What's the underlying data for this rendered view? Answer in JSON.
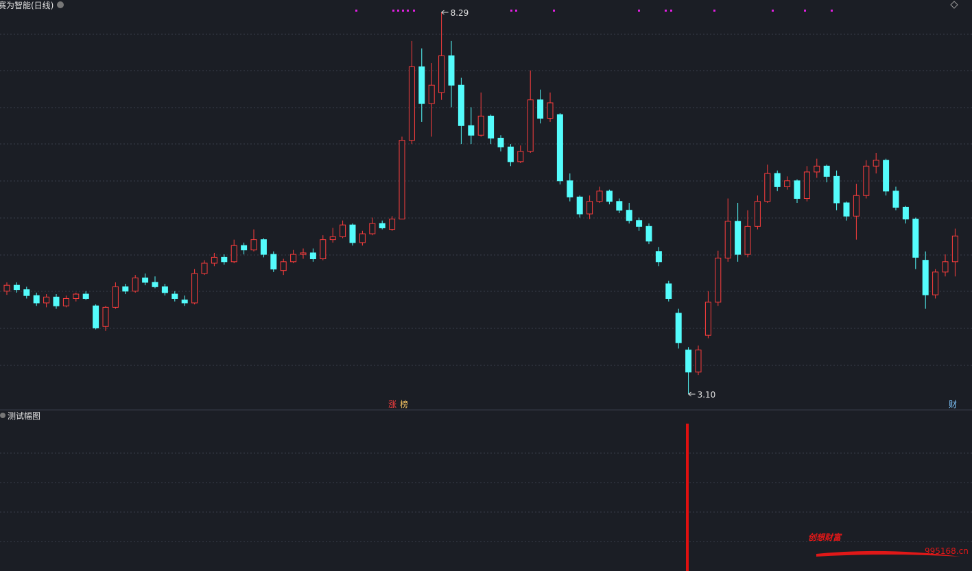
{
  "chart_data": {
    "type": "candlestick",
    "title": "赛为智能(日线)",
    "up_color": "#ff3d3d",
    "down_color": "#54fcfc",
    "open": [
      4.5,
      4.58,
      4.52,
      4.44,
      4.34,
      4.42,
      4.3,
      4.4,
      4.46,
      4.3,
      4.02,
      4.28,
      4.56,
      4.5,
      4.68,
      4.62,
      4.56,
      4.46,
      4.38,
      4.34,
      4.74,
      4.88,
      4.96,
      4.9,
      5.12,
      5.06,
      5.2,
      5.0,
      4.78,
      4.9,
      5.0,
      5.02,
      4.94,
      5.2,
      5.24,
      5.4,
      5.16,
      5.28,
      5.42,
      5.34,
      5.48,
      6.55,
      7.55,
      7.05,
      7.2,
      7.7,
      7.3,
      6.75,
      6.62,
      6.88,
      6.58,
      6.46,
      6.26,
      6.4,
      7.1,
      6.85,
      6.9,
      6.0,
      5.78,
      5.55,
      5.72,
      5.86,
      5.72,
      5.6,
      5.46,
      5.38,
      5.04,
      4.6,
      4.2,
      3.7,
      3.4,
      3.9,
      4.35,
      4.95,
      5.45,
      5.0,
      5.38,
      5.72,
      6.1,
      5.92,
      6.0,
      5.76,
      6.12,
      6.2,
      6.06,
      5.7,
      5.52,
      5.8,
      6.2,
      6.28,
      5.86,
      5.64,
      5.48,
      4.92,
      4.45,
      4.76,
      4.9
    ],
    "high": [
      4.62,
      4.62,
      4.56,
      4.48,
      4.46,
      4.46,
      4.44,
      4.48,
      4.5,
      4.32,
      4.3,
      4.62,
      4.6,
      4.72,
      4.74,
      4.7,
      4.6,
      4.5,
      4.44,
      4.8,
      4.92,
      5.02,
      5.0,
      5.2,
      5.16,
      5.34,
      5.22,
      5.04,
      4.94,
      5.06,
      5.08,
      5.08,
      5.26,
      5.36,
      5.46,
      5.42,
      5.32,
      5.5,
      5.46,
      5.52,
      6.6,
      7.9,
      7.8,
      7.6,
      8.29,
      7.9,
      7.4,
      7.0,
      7.2,
      6.9,
      6.62,
      6.5,
      6.48,
      7.5,
      7.24,
      7.2,
      6.92,
      6.1,
      5.8,
      5.8,
      5.92,
      5.88,
      5.76,
      5.7,
      5.5,
      5.42,
      5.1,
      4.64,
      4.26,
      3.74,
      3.76,
      4.5,
      5.05,
      5.76,
      5.7,
      5.6,
      5.8,
      6.22,
      6.14,
      6.06,
      6.02,
      6.2,
      6.3,
      6.22,
      6.14,
      5.72,
      5.96,
      6.28,
      6.38,
      6.3,
      5.92,
      5.66,
      5.5,
      5.04,
      4.8,
      5.0,
      5.35
    ],
    "low": [
      4.45,
      4.48,
      4.4,
      4.3,
      4.28,
      4.26,
      4.28,
      4.36,
      4.38,
      3.98,
      3.96,
      4.26,
      4.46,
      4.48,
      4.58,
      4.54,
      4.44,
      4.36,
      4.3,
      4.32,
      4.72,
      4.84,
      4.86,
      4.88,
      5.0,
      5.04,
      4.96,
      4.76,
      4.72,
      4.88,
      4.94,
      4.9,
      4.92,
      5.16,
      5.22,
      5.12,
      5.12,
      5.26,
      5.34,
      5.32,
      5.48,
      6.5,
      6.8,
      6.6,
      7.1,
      7.0,
      6.5,
      6.5,
      6.6,
      6.5,
      6.4,
      6.2,
      6.24,
      6.38,
      6.78,
      6.8,
      5.95,
      5.72,
      5.5,
      5.48,
      5.7,
      5.68,
      5.56,
      5.42,
      5.32,
      5.14,
      4.84,
      4.36,
      3.72,
      3.1,
      3.36,
      3.86,
      4.3,
      4.9,
      4.9,
      4.96,
      5.34,
      5.7,
      5.86,
      5.88,
      5.7,
      5.72,
      6.04,
      5.98,
      5.6,
      5.46,
      5.2,
      5.76,
      6.1,
      5.8,
      5.6,
      5.42,
      4.8,
      4.26,
      4.4,
      4.7,
      4.7
    ],
    "close": [
      4.58,
      4.52,
      4.44,
      4.34,
      4.42,
      4.3,
      4.4,
      4.46,
      4.4,
      4.0,
      4.28,
      4.56,
      4.5,
      4.68,
      4.62,
      4.56,
      4.48,
      4.4,
      4.34,
      4.74,
      4.88,
      4.96,
      4.9,
      5.12,
      5.06,
      5.2,
      5.0,
      4.8,
      4.9,
      5.0,
      5.02,
      4.94,
      5.2,
      5.24,
      5.4,
      5.16,
      5.28,
      5.42,
      5.36,
      5.48,
      6.55,
      7.55,
      7.05,
      7.3,
      7.7,
      7.3,
      6.75,
      6.62,
      6.88,
      6.58,
      6.46,
      6.26,
      6.4,
      7.1,
      6.85,
      7.06,
      6.0,
      5.78,
      5.55,
      5.72,
      5.86,
      5.72,
      5.6,
      5.46,
      5.38,
      5.18,
      4.9,
      4.4,
      3.8,
      3.4,
      3.7,
      4.35,
      4.95,
      5.45,
      5.0,
      5.38,
      5.72,
      6.1,
      5.92,
      6.0,
      5.76,
      6.12,
      6.2,
      6.06,
      5.7,
      5.52,
      5.8,
      6.2,
      6.28,
      5.86,
      5.64,
      5.48,
      4.96,
      4.45,
      4.76,
      4.9,
      5.25
    ],
    "high_label": "8.29",
    "low_label": "3.10"
  },
  "page": {
    "sub_title": "测试幅图",
    "tags": [
      "涨",
      "榜",
      "财"
    ],
    "watermark": "创想财富",
    "watermark_url": "995168.cn"
  }
}
